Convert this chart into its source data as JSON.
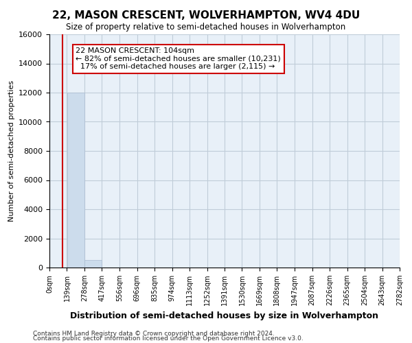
{
  "title": "22, MASON CRESCENT, WOLVERHAMPTON, WV4 4DU",
  "subtitle": "Size of property relative to semi-detached houses in Wolverhampton",
  "xlabel": "Distribution of semi-detached houses by size in Wolverhampton",
  "ylabel": "Number of semi-detached properties",
  "property_size": 104,
  "property_name": "22 MASON CRESCENT",
  "pct_smaller": 82,
  "num_smaller": 10231,
  "pct_larger": 17,
  "num_larger": 2115,
  "bin_edges": [
    0,
    139,
    278,
    417,
    556,
    696,
    835,
    974,
    1113,
    1252,
    1391,
    1530,
    1669,
    1808,
    1947,
    2087,
    2226,
    2365,
    2504,
    2643,
    2782
  ],
  "bin_counts": [
    0,
    12000,
    500,
    0,
    0,
    0,
    0,
    0,
    0,
    0,
    0,
    0,
    0,
    0,
    0,
    0,
    0,
    0,
    0,
    0
  ],
  "bar_color": "#ccdcec",
  "bar_edge_color": "#aabbd0",
  "plot_bg_color": "#e8f0f8",
  "line_color": "#cc0000",
  "annotation_box_edge": "#cc0000",
  "ylim": [
    0,
    16000
  ],
  "yticks": [
    0,
    2000,
    4000,
    6000,
    8000,
    10000,
    12000,
    14000,
    16000
  ],
  "grid_color": "#c0ccd8",
  "background_color": "#ffffff",
  "footer_line1": "Contains HM Land Registry data © Crown copyright and database right 2024.",
  "footer_line2": "Contains public sector information licensed under the Open Government Licence v3.0."
}
